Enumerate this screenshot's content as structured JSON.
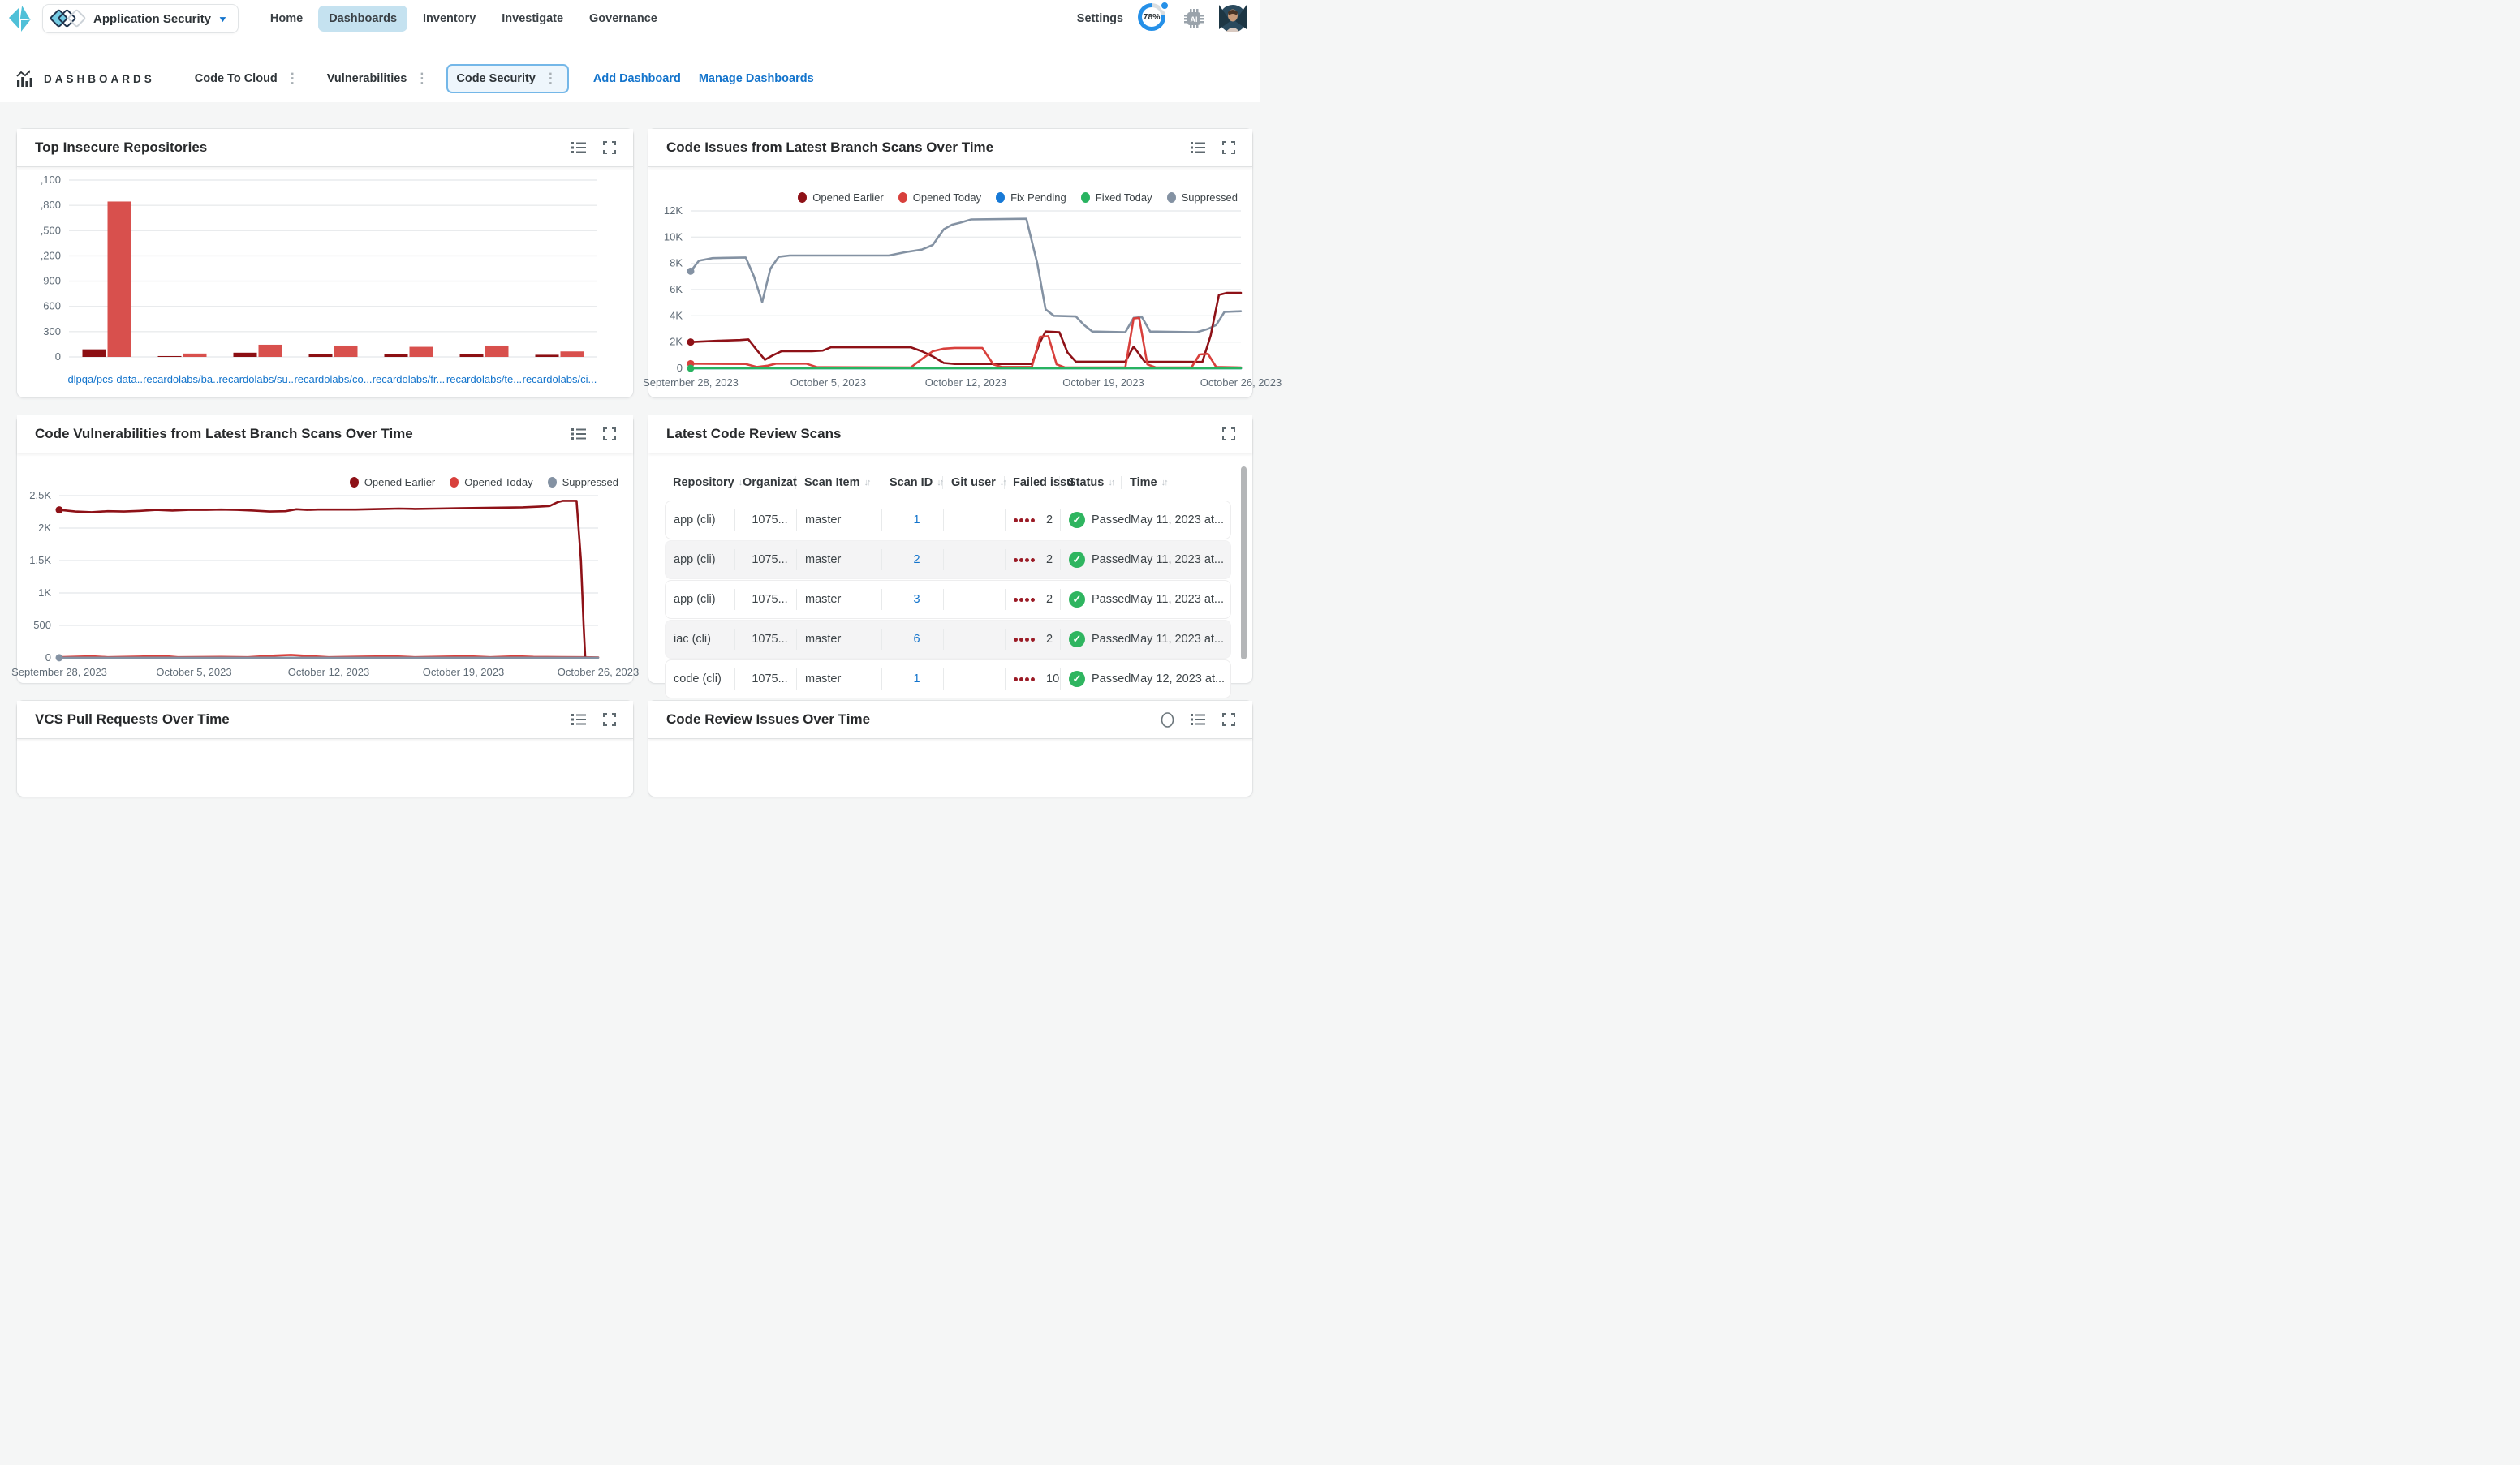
{
  "nav": {
    "app_switcher_label": "Application Security",
    "items": [
      "Home",
      "Dashboards",
      "Inventory",
      "Investigate",
      "Governance"
    ],
    "active_item": "Dashboards",
    "settings_label": "Settings",
    "progress_percent": "78%"
  },
  "toolbar": {
    "title": "DASHBOARDS",
    "tabs": [
      {
        "label": "Code To Cloud",
        "active": false
      },
      {
        "label": "Vulnerabilities",
        "active": false
      },
      {
        "label": "Code Security",
        "active": true
      }
    ],
    "add_dashboard_label": "Add Dashboard",
    "manage_dashboards_label": "Manage Dashboards"
  },
  "panels": {
    "top_insecure": {
      "title": "Top Insecure Repositories"
    },
    "code_issues": {
      "title": "Code Issues from Latest Branch Scans Over Time"
    },
    "code_vulns": {
      "title": "Code Vulnerabilities from Latest Branch Scans Over Time"
    },
    "latest_scans": {
      "title": "Latest Code Review Scans"
    },
    "vcs_prs": {
      "title": "VCS Pull Requests Over Time"
    },
    "review_issues": {
      "title": "Code Review Issues Over Time"
    }
  },
  "colors": {
    "dark_red": "#8c0f13",
    "red": "#d8504d",
    "blue": "#1779d6",
    "green": "#28b360",
    "gray": "#8492a3",
    "link_blue": "#1374cc",
    "status_green": "#2fb560",
    "severity_dot": "#9b1b26"
  },
  "chart_data": [
    {
      "panel": "top_insecure",
      "type": "bar",
      "title": "Top Insecure Repositories",
      "categories": [
        "dlpqa/pcs-data...",
        "recardolabs/ba...",
        "recardolabs/su...",
        "recardolabs/co...",
        "recardolabs/fr...",
        "recardolabs/te...",
        "recardolabs/ci..."
      ],
      "series": [
        {
          "name": "series1",
          "color": "#8c0f13",
          "values": [
            90,
            10,
            50,
            35,
            35,
            30,
            25
          ]
        },
        {
          "name": "series2",
          "color": "#d8504d",
          "values": [
            1845,
            40,
            145,
            135,
            120,
            135,
            65
          ]
        }
      ],
      "ylim": [
        0,
        2100
      ],
      "ytick_values": [
        0,
        300,
        600,
        900,
        1200,
        1500,
        1800,
        2100
      ],
      "ytick_labels": [
        "0",
        "300",
        "600",
        "900",
        ",200",
        ",500",
        ",800",
        ",100"
      ],
      "grid": true,
      "xlabel": "",
      "ylabel": ""
    },
    {
      "panel": "code_issues",
      "type": "line",
      "title": "Code Issues from Latest Branch Scans Over Time",
      "ylim": [
        0,
        12000
      ],
      "ytick_values": [
        0,
        2000,
        4000,
        6000,
        8000,
        10000,
        12000
      ],
      "ytick_labels": [
        "0",
        "2K",
        "4K",
        "6K",
        "8K",
        "10K",
        "12K"
      ],
      "x_labels": [
        "September 28, 2023",
        "October 5, 2023",
        "October 12, 2023",
        "October 19, 2023",
        "October 26, 2023"
      ],
      "legend_position": "top-right",
      "grid": true,
      "series": [
        {
          "name": "Fix Pending",
          "color": "#1779d6",
          "marker": false,
          "points": [
            [
              0,
              0
            ],
            [
              100,
              0
            ]
          ]
        },
        {
          "name": "Suppressed",
          "color": "#8492a3",
          "marker": true,
          "points": [
            [
              0,
              7400
            ],
            [
              1.5,
              8200
            ],
            [
              4,
              8400
            ],
            [
              10,
              8450
            ],
            [
              11.5,
              7000
            ],
            [
              13,
              5050
            ],
            [
              14.5,
              7600
            ],
            [
              16,
              8500
            ],
            [
              18,
              8600
            ],
            [
              36,
              8600
            ],
            [
              39,
              8850
            ],
            [
              42,
              9050
            ],
            [
              44,
              9400
            ],
            [
              46,
              10600
            ],
            [
              47.5,
              10950
            ],
            [
              49,
              11100
            ],
            [
              51,
              11350
            ],
            [
              61,
              11400
            ],
            [
              63,
              8000
            ],
            [
              64.5,
              4500
            ],
            [
              66,
              4000
            ],
            [
              70,
              3950
            ],
            [
              71.5,
              3300
            ],
            [
              73,
              2800
            ],
            [
              79,
              2750
            ],
            [
              80.5,
              3850
            ],
            [
              82,
              3900
            ],
            [
              83.5,
              2800
            ],
            [
              92,
              2750
            ],
            [
              94,
              3000
            ],
            [
              95.5,
              3300
            ],
            [
              97,
              4300
            ],
            [
              100,
              4350
            ]
          ]
        },
        {
          "name": "Opened Earlier",
          "color": "#8e1117",
          "marker": true,
          "points": [
            [
              0,
              2000
            ],
            [
              5,
              2100
            ],
            [
              9,
              2150
            ],
            [
              10.5,
              2200
            ],
            [
              12,
              1400
            ],
            [
              13.5,
              650
            ],
            [
              15,
              1000
            ],
            [
              16.5,
              1300
            ],
            [
              22,
              1300
            ],
            [
              24,
              1350
            ],
            [
              25.5,
              1600
            ],
            [
              40,
              1600
            ],
            [
              42,
              1300
            ],
            [
              44,
              900
            ],
            [
              46,
              400
            ],
            [
              48,
              330
            ],
            [
              62,
              330
            ],
            [
              63.5,
              2000
            ],
            [
              64.5,
              2800
            ],
            [
              67,
              2750
            ],
            [
              68.5,
              1200
            ],
            [
              70,
              500
            ],
            [
              79,
              500
            ],
            [
              80.5,
              1650
            ],
            [
              82.5,
              500
            ],
            [
              93,
              480
            ],
            [
              94.5,
              2500
            ],
            [
              96,
              5600
            ],
            [
              97.5,
              5750
            ],
            [
              100,
              5750
            ]
          ]
        },
        {
          "name": "Opened Today",
          "color": "#d8403c",
          "marker": true,
          "points": [
            [
              0,
              350
            ],
            [
              10,
              330
            ],
            [
              12,
              100
            ],
            [
              14,
              200
            ],
            [
              15.5,
              350
            ],
            [
              21,
              350
            ],
            [
              23,
              80
            ],
            [
              40,
              60
            ],
            [
              42,
              700
            ],
            [
              44,
              1300
            ],
            [
              46,
              1500
            ],
            [
              48,
              1550
            ],
            [
              53,
              1550
            ],
            [
              55,
              300
            ],
            [
              56.5,
              100
            ],
            [
              62,
              100
            ],
            [
              63.5,
              2400
            ],
            [
              65,
              2450
            ],
            [
              66.5,
              300
            ],
            [
              68,
              60
            ],
            [
              79,
              60
            ],
            [
              80.5,
              3800
            ],
            [
              81.5,
              3850
            ],
            [
              83,
              300
            ],
            [
              84.5,
              60
            ],
            [
              91,
              60
            ],
            [
              92.5,
              1050
            ],
            [
              94,
              1100
            ],
            [
              95.5,
              100
            ],
            [
              100,
              60
            ]
          ]
        },
        {
          "name": "Fixed Today",
          "color": "#28b360",
          "marker": true,
          "points": [
            [
              0,
              0
            ],
            [
              100,
              0
            ]
          ]
        }
      ],
      "legend_order": [
        "Opened Earlier",
        "Opened Today",
        "Fix Pending",
        "Fixed Today",
        "Suppressed"
      ]
    },
    {
      "panel": "code_vulns",
      "type": "line",
      "title": "Code Vulnerabilities from Latest Branch Scans Over Time",
      "ylim": [
        0,
        2500
      ],
      "ytick_values": [
        0,
        500,
        1000,
        1500,
        2000,
        2500
      ],
      "ytick_labels": [
        "0",
        "500",
        "1K",
        "1.5K",
        "2K",
        "2.5K"
      ],
      "x_labels": [
        "September 28, 2023",
        "October 5, 2023",
        "October 12, 2023",
        "October 19, 2023",
        "October 26, 2023"
      ],
      "legend_position": "top-right",
      "grid": true,
      "series": [
        {
          "name": "Opened Today",
          "color": "#d8403c",
          "marker": false,
          "points": [
            [
              0,
              10
            ],
            [
              6,
              25
            ],
            [
              9,
              10
            ],
            [
              15,
              20
            ],
            [
              19,
              30
            ],
            [
              22,
              10
            ],
            [
              30,
              15
            ],
            [
              35,
              10
            ],
            [
              40,
              35
            ],
            [
              43,
              45
            ],
            [
              46,
              30
            ],
            [
              50,
              10
            ],
            [
              57,
              20
            ],
            [
              62,
              25
            ],
            [
              66,
              10
            ],
            [
              72,
              20
            ],
            [
              76,
              25
            ],
            [
              80,
              10
            ],
            [
              85,
              25
            ],
            [
              88,
              15
            ],
            [
              93,
              12
            ],
            [
              97,
              10
            ],
            [
              100,
              8
            ]
          ]
        },
        {
          "name": "Opened Earlier",
          "color": "#8e1117",
          "marker": true,
          "points": [
            [
              0,
              2280
            ],
            [
              3,
              2255
            ],
            [
              6,
              2245
            ],
            [
              9,
              2260
            ],
            [
              12,
              2255
            ],
            [
              15,
              2265
            ],
            [
              18,
              2280
            ],
            [
              21,
              2270
            ],
            [
              24,
              2280
            ],
            [
              27,
              2280
            ],
            [
              30,
              2285
            ],
            [
              33,
              2280
            ],
            [
              36,
              2270
            ],
            [
              39,
              2255
            ],
            [
              42,
              2260
            ],
            [
              44,
              2290
            ],
            [
              46,
              2280
            ],
            [
              48,
              2285
            ],
            [
              55,
              2285
            ],
            [
              60,
              2295
            ],
            [
              63,
              2300
            ],
            [
              66,
              2295
            ],
            [
              70,
              2300
            ],
            [
              74,
              2305
            ],
            [
              78,
              2310
            ],
            [
              82,
              2315
            ],
            [
              86,
              2320
            ],
            [
              89,
              2330
            ],
            [
              91,
              2340
            ],
            [
              92.5,
              2400
            ],
            [
              93.5,
              2420
            ],
            [
              96,
              2420
            ],
            [
              96.8,
              1500
            ],
            [
              97.3,
              500
            ],
            [
              97.6,
              0
            ]
          ]
        },
        {
          "name": "Suppressed",
          "color": "#8492a3",
          "marker": true,
          "points": [
            [
              0,
              2
            ],
            [
              100,
              2
            ]
          ]
        }
      ],
      "legend_order": [
        "Opened Earlier",
        "Opened Today",
        "Suppressed"
      ]
    }
  ],
  "table": {
    "columns": [
      {
        "label": "Repository",
        "sort": true
      },
      {
        "label": "Organizat",
        "sort": false
      },
      {
        "label": "Scan Item",
        "sort": true
      },
      {
        "label": "Scan ID",
        "sort": true
      },
      {
        "label": "Git user",
        "sort": true
      },
      {
        "label": "Failed issu",
        "sort": false
      },
      {
        "label": "Status",
        "sort": true
      },
      {
        "label": "Time",
        "sort": true
      }
    ],
    "rows": [
      {
        "repository": "app (cli)",
        "organization": "1075...",
        "scan_item": "master",
        "scan_id": "1",
        "git_user": "",
        "failed_issues": "2",
        "status": "Passed",
        "time": "May 11, 2023 at..."
      },
      {
        "repository": "app (cli)",
        "organization": "1075...",
        "scan_item": "master",
        "scan_id": "2",
        "git_user": "",
        "failed_issues": "2",
        "status": "Passed",
        "time": "May 11, 2023 at..."
      },
      {
        "repository": "app (cli)",
        "organization": "1075...",
        "scan_item": "master",
        "scan_id": "3",
        "git_user": "",
        "failed_issues": "2",
        "status": "Passed",
        "time": "May 11, 2023 at..."
      },
      {
        "repository": "iac (cli)",
        "organization": "1075...",
        "scan_item": "master",
        "scan_id": "6",
        "git_user": "",
        "failed_issues": "2",
        "status": "Passed",
        "time": "May 11, 2023 at..."
      },
      {
        "repository": "code (cli)",
        "organization": "1075...",
        "scan_item": "master",
        "scan_id": "1",
        "git_user": "",
        "failed_issues": "10",
        "status": "Passed",
        "time": "May 12, 2023 at..."
      }
    ]
  }
}
